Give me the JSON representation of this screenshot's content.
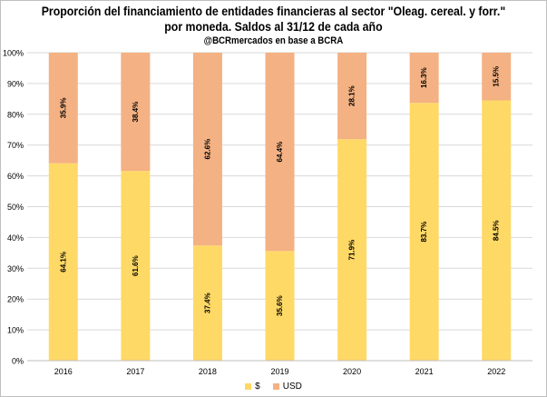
{
  "chart_data": {
    "type": "bar",
    "stacked": true,
    "percent": true,
    "title_line1": "Proporción del financiamiento de entidades financieras al sector \"Oleag. cereal. y forr.\"",
    "title_line2": "por moneda. Saldos al 31/12 de cada año",
    "subtitle": "@BCRmercados en base a BCRA",
    "categories": [
      "2016",
      "2017",
      "2018",
      "2019",
      "2020",
      "2021",
      "2022"
    ],
    "series": [
      {
        "name": "$",
        "color": "#ffd966",
        "values": [
          64.1,
          61.6,
          37.4,
          35.6,
          71.9,
          83.7,
          84.5
        ],
        "labels": [
          "64.1%",
          "61.6%",
          "37.4%",
          "35.6%",
          "71.9%",
          "83.7%",
          "84.5%"
        ]
      },
      {
        "name": "USD",
        "color": "#f4b183",
        "values": [
          35.9,
          38.4,
          62.6,
          64.4,
          28.1,
          16.3,
          15.5
        ],
        "labels": [
          "35.9%",
          "38.4%",
          "62.6%",
          "64.4%",
          "28.1%",
          "16.3%",
          "15.5%"
        ]
      }
    ],
    "ylim": [
      0,
      100
    ],
    "yticks": [
      "0%",
      "10%",
      "20%",
      "30%",
      "40%",
      "50%",
      "60%",
      "70%",
      "80%",
      "90%",
      "100%"
    ],
    "grid": true,
    "legend_position": "bottom"
  }
}
